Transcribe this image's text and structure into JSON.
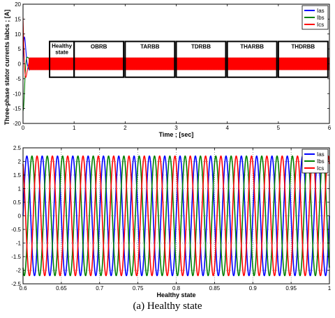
{
  "caption": "(a) Healthy state",
  "chart_data": [
    {
      "type": "line",
      "xlabel": "Time ; [sec]",
      "ylabel": "Three-phase stator currents Iabcs ; [A]",
      "xlim": [
        0,
        6
      ],
      "ylim": [
        -20,
        20
      ],
      "xticks": [
        0,
        1,
        2,
        3,
        4,
        5,
        6
      ],
      "yticks": [
        -20,
        -15,
        -10,
        -5,
        0,
        5,
        10,
        15,
        20
      ],
      "legend": {
        "position": "top-right",
        "entries": [
          "Ias",
          "Ibs",
          "Ics"
        ]
      },
      "series": [
        {
          "name": "Ias",
          "color": "#0000ff"
        },
        {
          "name": "Ibs",
          "color": "#008000"
        },
        {
          "name": "Ics",
          "color": "#ff0000"
        }
      ],
      "signal": {
        "startup_peak": 18,
        "startup_end": 0.1,
        "steady_amplitude": 2.1
      },
      "annotations": [
        {
          "label": "Healthy state",
          "x_start": 0.52,
          "x_end": 1.0,
          "y_top": 7.5,
          "y_bottom": -4.5
        },
        {
          "label": "OBRB",
          "x_start": 1.0,
          "x_end": 1.97,
          "y_top": 7.5,
          "y_bottom": -4.5
        },
        {
          "label": "TARBB",
          "x_start": 2.0,
          "x_end": 2.97,
          "y_top": 7.5,
          "y_bottom": -4.5
        },
        {
          "label": "TDRBB",
          "x_start": 3.0,
          "x_end": 3.97,
          "y_top": 7.5,
          "y_bottom": -4.5
        },
        {
          "label": "THARBB",
          "x_start": 4.0,
          "x_end": 4.97,
          "y_top": 7.5,
          "y_bottom": -4.5
        },
        {
          "label": "THDRBB",
          "x_start": 5.0,
          "x_end": 5.97,
          "y_top": 7.5,
          "y_bottom": -4.5
        }
      ]
    },
    {
      "type": "line",
      "xlabel": "Healthy state",
      "ylabel": "",
      "xlim": [
        0.6,
        1.0
      ],
      "ylim": [
        -2.5,
        2.5
      ],
      "xticks": [
        0.6,
        0.65,
        0.7,
        0.75,
        0.8,
        0.85,
        0.9,
        0.95,
        1
      ],
      "yticks": [
        -2.5,
        -2,
        -1.5,
        -1,
        -0.5,
        0,
        0.5,
        1,
        1.5,
        2,
        2.5
      ],
      "grid": "dotted",
      "legend": {
        "position": "top-right",
        "entries": [
          "Ias",
          "Ibs",
          "Ics"
        ]
      },
      "series": [
        {
          "name": "Ias",
          "color": "#0000ff",
          "amplitude": 2.2,
          "frequency_hz": 50,
          "phase_deg": 0
        },
        {
          "name": "Ibs",
          "color": "#008000",
          "amplitude": 2.2,
          "frequency_hz": 50,
          "phase_deg": -120
        },
        {
          "name": "Ics",
          "color": "#ff0000",
          "amplitude": 2.2,
          "frequency_hz": 50,
          "phase_deg": 120
        }
      ]
    }
  ]
}
